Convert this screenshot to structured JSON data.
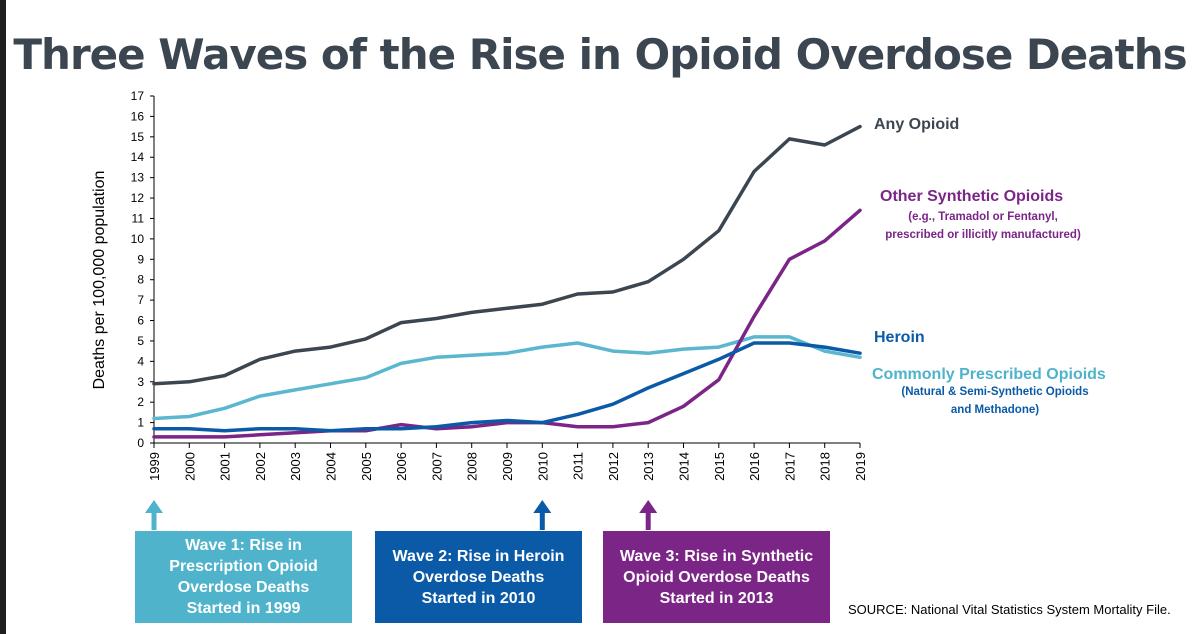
{
  "title": "Three Waves of the Rise in Opioid Overdose Deaths",
  "chart_data": {
    "type": "line",
    "ylabel": "Deaths per 100,000 population",
    "xlabel": "",
    "ylim": [
      0,
      17
    ],
    "yticks": [
      "0",
      "1",
      "2",
      "3",
      "4",
      "5",
      "6",
      "7",
      "8",
      "9",
      "10",
      "11",
      "12",
      "13",
      "14",
      "15",
      "16",
      "17"
    ],
    "x": [
      "1999",
      "2000",
      "2001",
      "2002",
      "2003",
      "2004",
      "2005",
      "2006",
      "2007",
      "2008",
      "2009",
      "2010",
      "2011",
      "2012",
      "2013",
      "2014",
      "2015",
      "2016",
      "2017",
      "2018",
      "2019"
    ],
    "grid": false,
    "legend": "right",
    "series": [
      {
        "name": "Any Opioid",
        "color": "#3b4651",
        "values": [
          2.9,
          3.0,
          3.3,
          4.1,
          4.5,
          4.7,
          5.1,
          5.9,
          6.1,
          6.4,
          6.6,
          6.8,
          7.3,
          7.4,
          7.9,
          9.0,
          10.4,
          13.3,
          14.9,
          14.6,
          15.5
        ]
      },
      {
        "name": "Other Synthetic Opioids",
        "color": "#7b2587",
        "values": [
          0.3,
          0.3,
          0.3,
          0.4,
          0.5,
          0.6,
          0.6,
          0.9,
          0.7,
          0.8,
          1.0,
          1.0,
          0.8,
          0.8,
          1.0,
          1.8,
          3.1,
          6.2,
          9.0,
          9.9,
          11.4
        ]
      },
      {
        "name": "Heroin",
        "color": "#0a5aa8",
        "values": [
          0.7,
          0.7,
          0.6,
          0.7,
          0.7,
          0.6,
          0.7,
          0.7,
          0.8,
          1.0,
          1.1,
          1.0,
          1.4,
          1.9,
          2.7,
          3.4,
          4.1,
          4.9,
          4.9,
          4.7,
          4.4
        ]
      },
      {
        "name": "Commonly Prescribed Opioids",
        "color": "#5bb7cf",
        "values": [
          1.2,
          1.3,
          1.7,
          2.3,
          2.6,
          2.9,
          3.2,
          3.9,
          4.2,
          4.3,
          4.4,
          4.7,
          4.9,
          4.5,
          4.4,
          4.6,
          4.7,
          5.2,
          5.2,
          4.5,
          4.2
        ]
      }
    ]
  },
  "series_notes": {
    "synthetic_line1": "(e.g., Tramadol or Fentanyl,",
    "synthetic_line2": "prescribed or illicitly manufactured)",
    "prescribed_line1": "(Natural & Semi-Synthetic Opioids",
    "prescribed_line2": "and Methadone)"
  },
  "waves": [
    {
      "label": "Wave 1: Rise in\nPrescription Opioid\nOverdose Deaths\nStarted in 1999",
      "year": "1999",
      "color": "#4fb3cc"
    },
    {
      "label": "Wave 2: Rise in Heroin\nOverdose Deaths\nStarted in 2010",
      "year": "2010",
      "color": "#0a5aa8"
    },
    {
      "label": "Wave 3: Rise in Synthetic\nOpioid Overdose Deaths\nStarted in 2013",
      "year": "2013",
      "color": "#7b2587"
    }
  ],
  "source": "SOURCE: National Vital Statistics System Mortality File."
}
